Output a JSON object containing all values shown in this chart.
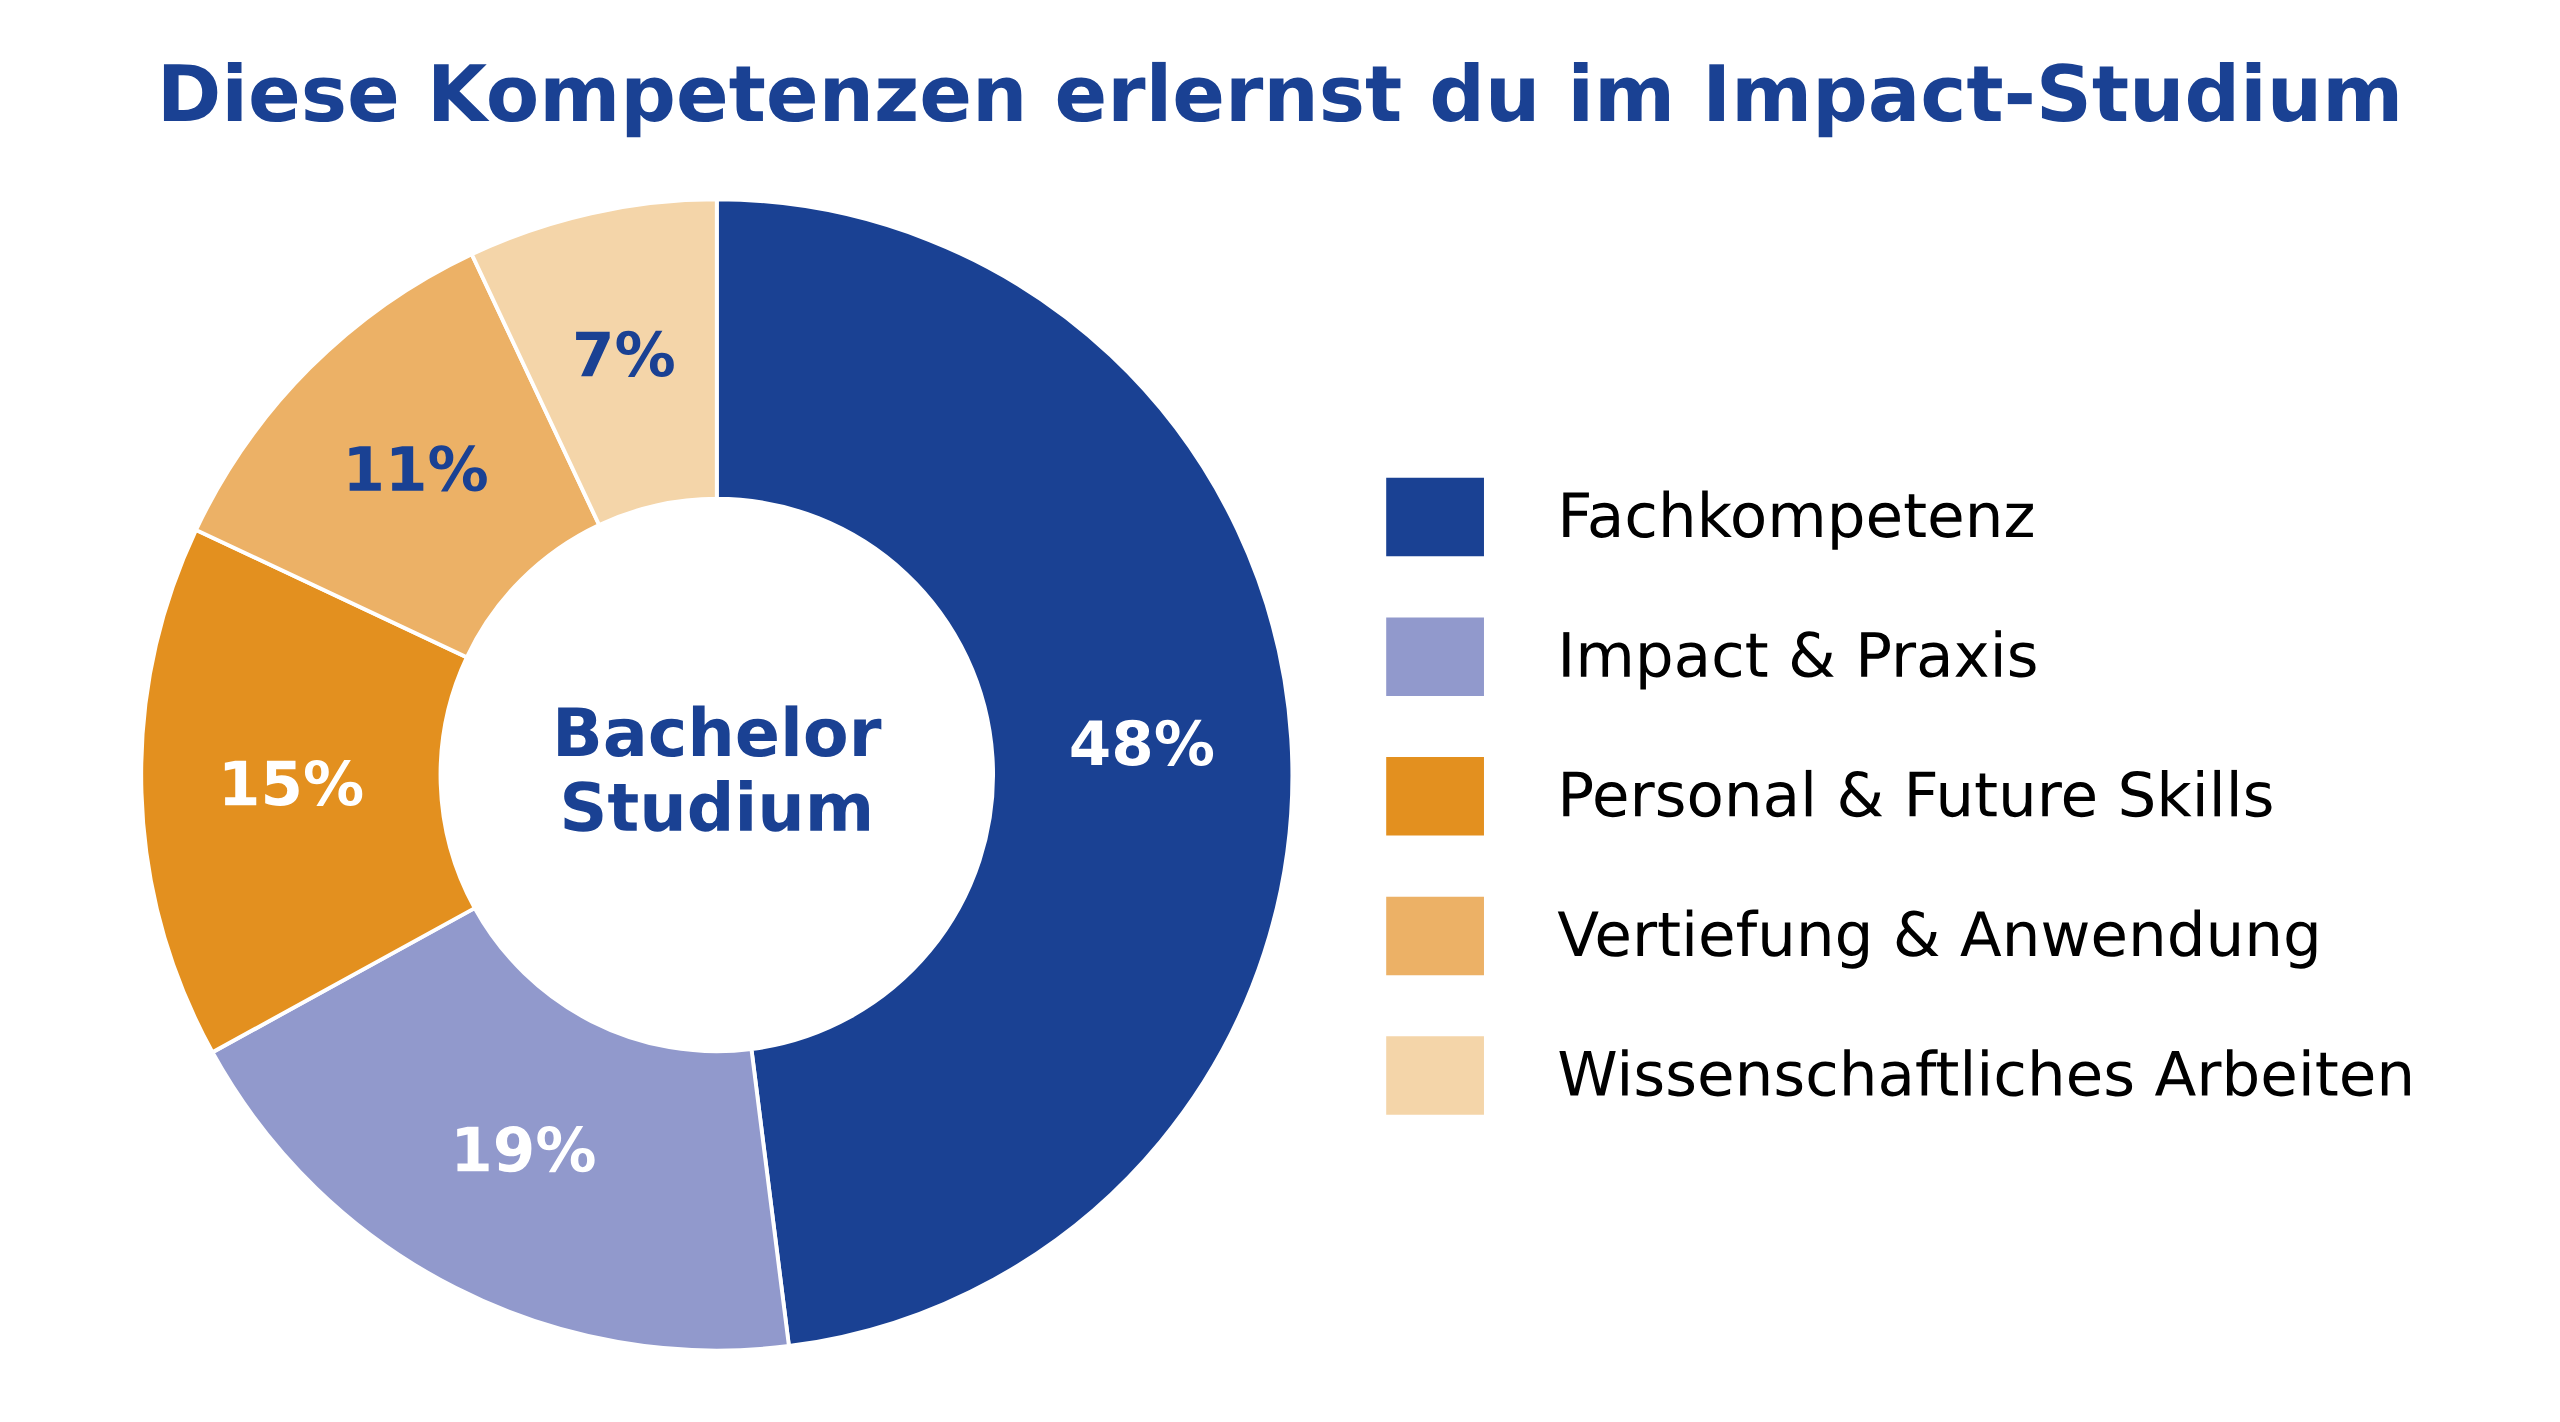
{
  "chart_data": {
    "type": "donut",
    "title": "Diese Kompetenzen erlernst du im Impact-Studium",
    "categories": [
      "Fachkompetenz",
      "Impact & Praxis",
      "Personal & Future Skills",
      "Vertiefung & Anwendung",
      "Wissenschaftliches Arbeiten"
    ],
    "values": [
      48,
      19,
      15,
      11,
      7
    ],
    "colors": [
      "#1a4193",
      "#9199cc",
      "#e3901f",
      "#ecb166",
      "#f4d5a9"
    ],
    "value_labels": [
      "48%",
      "19%",
      "15%",
      "11%",
      "7%"
    ],
    "annotations": [
      "Bachelor\nStudium"
    ],
    "legend": "right"
  }
}
